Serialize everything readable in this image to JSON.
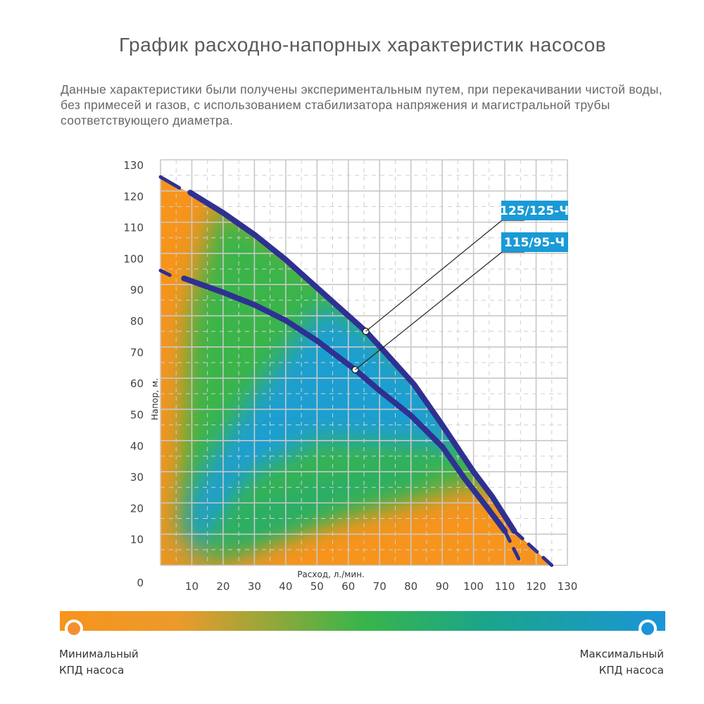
{
  "title": "График расходно-напорных характеристик насосов",
  "description": "Данные характеристики были получены экспериментальным путем, при перекачивании чистой воды, без примесей и газов, с использованием стабилизатора напряжения и магистральной трубы соответствующего диаметра.",
  "chart_data": {
    "type": "line",
    "xlabel": "Расход, л./мин.",
    "ylabel": "Напор, м.",
    "xlim": [
      0,
      130
    ],
    "ylim": [
      0,
      130
    ],
    "x_ticks": [
      "10",
      "20",
      "30",
      "40",
      "50",
      "60",
      "70",
      "80",
      "90",
      "100",
      "110",
      "120",
      "130"
    ],
    "y_ticks": [
      "10",
      "20",
      "30",
      "40",
      "50",
      "60",
      "70",
      "80",
      "90",
      "100",
      "110",
      "120",
      "130"
    ],
    "origin_label": "0",
    "grid": true,
    "background": "heatmap of pump efficiency (orange = minimum, blue = maximum)",
    "series": [
      {
        "name": "125/125-Ч",
        "dashed_start": [
          [
            0,
            124.5
          ],
          [
            6,
            121
          ]
        ],
        "points": [
          [
            9.5,
            119.5
          ],
          [
            20,
            113
          ],
          [
            30,
            106
          ],
          [
            40,
            98
          ],
          [
            50,
            89
          ],
          [
            60,
            80
          ],
          [
            65.6,
            75
          ],
          [
            72,
            68
          ],
          [
            81,
            58
          ],
          [
            90,
            45
          ],
          [
            100,
            30
          ],
          [
            106,
            22
          ],
          [
            113,
            11
          ]
        ],
        "dashed_end": [
          [
            113,
            11
          ],
          [
            125,
            0
          ]
        ],
        "marker": [
          65.6,
          75
        ]
      },
      {
        "name": "115/95-Ч",
        "dashed_start": [
          [
            0,
            94.5
          ],
          [
            3,
            93
          ]
        ],
        "points": [
          [
            7.5,
            92
          ],
          [
            20,
            87.5
          ],
          [
            30,
            83.5
          ],
          [
            40,
            78.5
          ],
          [
            50,
            72
          ],
          [
            62.2,
            62.7
          ],
          [
            70,
            56
          ],
          [
            80,
            48
          ],
          [
            90,
            38
          ],
          [
            97,
            28
          ],
          [
            104,
            19
          ],
          [
            110,
            11
          ]
        ],
        "dashed_end": [
          [
            110,
            11
          ],
          [
            115.5,
            0
          ]
        ],
        "marker": [
          62.2,
          62.7
        ]
      }
    ],
    "colors": {
      "curve": "#2e3192",
      "label_bg": "#1a9ad6",
      "min": "#f7941d",
      "mid": "#39b54a",
      "max": "#1b95d8"
    }
  },
  "legend": {
    "min_label_1": "Минимальный",
    "min_label_2": "КПД насоса",
    "max_label_1": "Максимальный",
    "max_label_2": "КПД насоса"
  }
}
